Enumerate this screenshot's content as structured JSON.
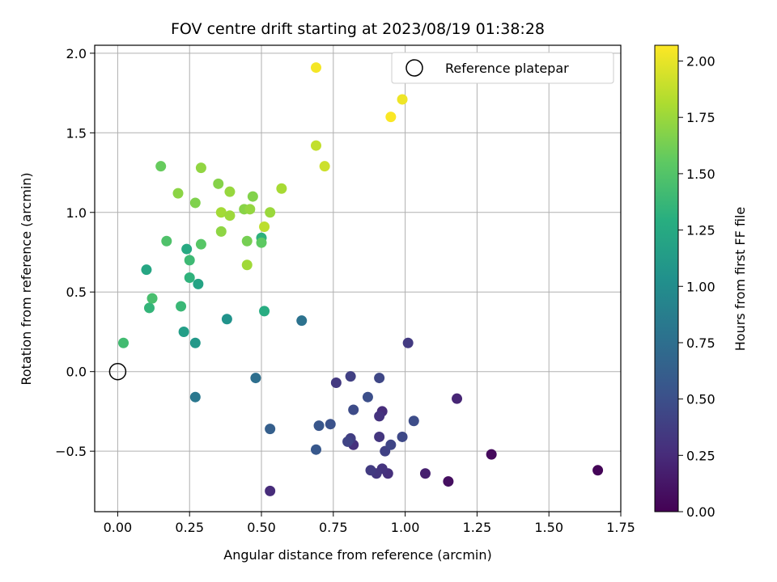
{
  "chart_data": {
    "type": "scatter",
    "title": "FOV centre drift starting at 2023/08/19 01:38:28",
    "xlabel": "Angular distance from reference (arcmin)",
    "ylabel": "Rotation from reference (arcmin)",
    "xlim": [
      -0.08,
      1.75
    ],
    "ylim": [
      -0.88,
      2.05
    ],
    "xticks": [
      "0.00",
      "0.25",
      "0.50",
      "0.75",
      "1.00",
      "1.25",
      "1.50",
      "1.75"
    ],
    "yticks": [
      "−0.5",
      "0.0",
      "0.5",
      "1.0",
      "1.5",
      "2.0"
    ],
    "grid": true,
    "legend": {
      "label": "Reference platepar",
      "placement": "top-right"
    },
    "reference_point": {
      "x": 0.0,
      "y": 0.0
    },
    "colorbar": {
      "label": "Hours from first FF file",
      "colormap": "viridis",
      "range": [
        0.0,
        2.07
      ],
      "ticks": [
        "0.00",
        "0.25",
        "0.50",
        "0.75",
        "1.00",
        "1.25",
        "1.50",
        "1.75",
        "2.00"
      ]
    },
    "points": [
      {
        "x": 1.67,
        "y": -0.62,
        "c": 0.02
      },
      {
        "x": 1.3,
        "y": -0.52,
        "c": 0.05
      },
      {
        "x": 1.15,
        "y": -0.69,
        "c": 0.08
      },
      {
        "x": 1.07,
        "y": -0.64,
        "c": 0.18
      },
      {
        "x": 1.18,
        "y": -0.17,
        "c": 0.22
      },
      {
        "x": 1.01,
        "y": 0.18,
        "c": 0.35
      },
      {
        "x": 0.53,
        "y": -0.75,
        "c": 0.25
      },
      {
        "x": 0.94,
        "y": -0.64,
        "c": 0.28
      },
      {
        "x": 0.92,
        "y": -0.61,
        "c": 0.31
      },
      {
        "x": 0.9,
        "y": -0.64,
        "c": 0.33
      },
      {
        "x": 0.88,
        "y": -0.62,
        "c": 0.36
      },
      {
        "x": 0.93,
        "y": -0.5,
        "c": 0.4
      },
      {
        "x": 0.95,
        "y": -0.46,
        "c": 0.43
      },
      {
        "x": 0.99,
        "y": -0.41,
        "c": 0.45
      },
      {
        "x": 1.03,
        "y": -0.31,
        "c": 0.48
      },
      {
        "x": 0.92,
        "y": -0.25,
        "c": 0.26
      },
      {
        "x": 0.91,
        "y": -0.28,
        "c": 0.3
      },
      {
        "x": 0.91,
        "y": -0.41,
        "c": 0.32
      },
      {
        "x": 0.82,
        "y": -0.46,
        "c": 0.29
      },
      {
        "x": 0.81,
        "y": -0.42,
        "c": 0.38
      },
      {
        "x": 0.8,
        "y": -0.44,
        "c": 0.42
      },
      {
        "x": 0.82,
        "y": -0.24,
        "c": 0.47
      },
      {
        "x": 0.87,
        "y": -0.16,
        "c": 0.5
      },
      {
        "x": 0.91,
        "y": -0.04,
        "c": 0.44
      },
      {
        "x": 0.81,
        "y": -0.03,
        "c": 0.39
      },
      {
        "x": 0.76,
        "y": -0.07,
        "c": 0.34
      },
      {
        "x": 0.74,
        "y": -0.33,
        "c": 0.52
      },
      {
        "x": 0.7,
        "y": -0.34,
        "c": 0.55
      },
      {
        "x": 0.69,
        "y": -0.49,
        "c": 0.57
      },
      {
        "x": 0.53,
        "y": -0.36,
        "c": 0.62
      },
      {
        "x": 0.48,
        "y": -0.04,
        "c": 0.75
      },
      {
        "x": 0.27,
        "y": -0.16,
        "c": 0.82
      },
      {
        "x": 0.64,
        "y": 0.32,
        "c": 0.78
      },
      {
        "x": 0.38,
        "y": 0.33,
        "c": 1.05
      },
      {
        "x": 0.27,
        "y": 0.18,
        "c": 1.1
      },
      {
        "x": 0.23,
        "y": 0.25,
        "c": 1.15
      },
      {
        "x": 0.51,
        "y": 0.38,
        "c": 1.28
      },
      {
        "x": 0.28,
        "y": 0.55,
        "c": 1.2
      },
      {
        "x": 0.25,
        "y": 0.59,
        "c": 1.33
      },
      {
        "x": 0.25,
        "y": 0.7,
        "c": 1.4
      },
      {
        "x": 0.24,
        "y": 0.77,
        "c": 1.25
      },
      {
        "x": 0.1,
        "y": 0.64,
        "c": 1.22
      },
      {
        "x": 0.11,
        "y": 0.4,
        "c": 1.35
      },
      {
        "x": 0.12,
        "y": 0.46,
        "c": 1.45
      },
      {
        "x": 0.22,
        "y": 0.41,
        "c": 1.38
      },
      {
        "x": 0.02,
        "y": 0.18,
        "c": 1.42
      },
      {
        "x": 0.5,
        "y": 0.84,
        "c": 1.32
      },
      {
        "x": 0.5,
        "y": 0.81,
        "c": 1.55
      },
      {
        "x": 0.29,
        "y": 0.8,
        "c": 1.52
      },
      {
        "x": 0.17,
        "y": 0.82,
        "c": 1.48
      },
      {
        "x": 0.15,
        "y": 1.29,
        "c": 1.58
      },
      {
        "x": 0.21,
        "y": 1.12,
        "c": 1.7
      },
      {
        "x": 0.27,
        "y": 1.06,
        "c": 1.66
      },
      {
        "x": 0.29,
        "y": 1.28,
        "c": 1.72
      },
      {
        "x": 0.35,
        "y": 1.18,
        "c": 1.68
      },
      {
        "x": 0.39,
        "y": 1.13,
        "c": 1.74
      },
      {
        "x": 0.36,
        "y": 1.0,
        "c": 1.78
      },
      {
        "x": 0.39,
        "y": 0.98,
        "c": 1.76
      },
      {
        "x": 0.36,
        "y": 0.88,
        "c": 1.71
      },
      {
        "x": 0.44,
        "y": 1.02,
        "c": 1.69
      },
      {
        "x": 0.46,
        "y": 1.02,
        "c": 1.73
      },
      {
        "x": 0.47,
        "y": 1.1,
        "c": 1.67
      },
      {
        "x": 0.45,
        "y": 0.82,
        "c": 1.63
      },
      {
        "x": 0.45,
        "y": 0.67,
        "c": 1.77
      },
      {
        "x": 0.53,
        "y": 1.0,
        "c": 1.75
      },
      {
        "x": 0.51,
        "y": 0.91,
        "c": 1.86
      },
      {
        "x": 0.57,
        "y": 1.15,
        "c": 1.79
      },
      {
        "x": 0.69,
        "y": 1.42,
        "c": 1.88
      },
      {
        "x": 0.72,
        "y": 1.29,
        "c": 1.91
      },
      {
        "x": 0.69,
        "y": 1.91,
        "c": 2.04
      },
      {
        "x": 0.99,
        "y": 1.71,
        "c": 2.02
      },
      {
        "x": 0.95,
        "y": 1.6,
        "c": 2.06
      }
    ]
  }
}
